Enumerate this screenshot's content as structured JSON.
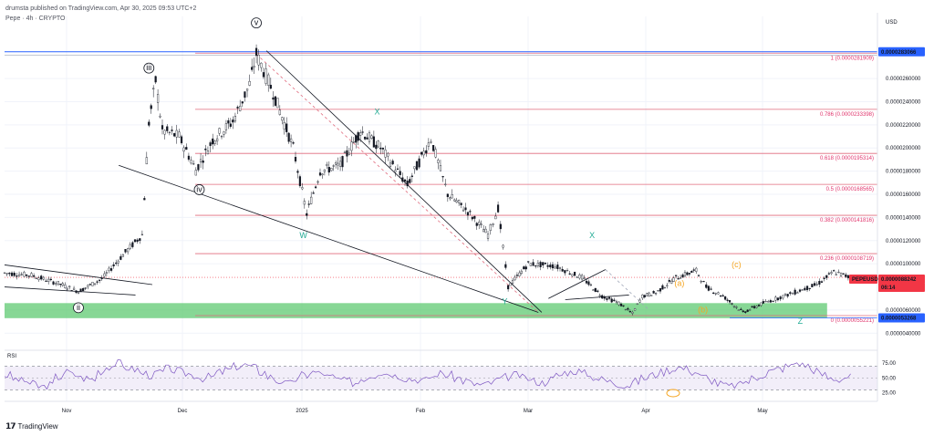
{
  "header": {
    "publisher": "drumsta published on TradingView.com, Apr 30, 2025 09:53 UTC+2",
    "symbol": "Pepe · 4h · CRYPTO"
  },
  "footer": {
    "brand": "TradingView"
  },
  "chart_data": {
    "type": "line",
    "title": "Pepe · 4h · CRYPTO",
    "currency": "USD",
    "x": [
      "Nov",
      "Dec",
      "2025",
      "Feb",
      "Mar",
      "Apr",
      "May"
    ],
    "y_ticks": [
      "0.0000260000",
      "0.0000240000",
      "0.0000220000",
      "0.0000200000",
      "0.0000180000",
      "0.0000160000",
      "0.0000140000",
      "0.0000120000",
      "0.0000100000",
      "0.0000060000",
      "0.0000040000"
    ],
    "ylim": [
      3e-06,
      2.9e-05
    ],
    "price_path": [
      {
        "t": 0,
        "p": 9.2e-06
      },
      {
        "t": 0.04,
        "p": 9e-06
      },
      {
        "t": 0.08,
        "p": 8.3e-06
      },
      {
        "t": 0.11,
        "p": 7.6e-06
      },
      {
        "t": 0.145,
        "p": 8.7e-06
      },
      {
        "t": 0.18,
        "p": 1.1e-05
      },
      {
        "t": 0.205,
        "p": 1.25e-05
      },
      {
        "t": 0.215,
        "p": 2.22e-05
      },
      {
        "t": 0.225,
        "p": 2.58e-05
      },
      {
        "t": 0.235,
        "p": 2.15e-05
      },
      {
        "t": 0.26,
        "p": 2.1e-05
      },
      {
        "t": 0.285,
        "p": 1.81e-05
      },
      {
        "t": 0.31,
        "p": 2.07e-05
      },
      {
        "t": 0.34,
        "p": 2.23e-05
      },
      {
        "t": 0.365,
        "p": 2.55e-05
      },
      {
        "t": 0.375,
        "p": 2.81e-05
      },
      {
        "t": 0.4,
        "p": 2.48e-05
      },
      {
        "t": 0.43,
        "p": 2e-05
      },
      {
        "t": 0.45,
        "p": 1.43e-05
      },
      {
        "t": 0.47,
        "p": 1.8e-05
      },
      {
        "t": 0.5,
        "p": 1.85e-05
      },
      {
        "t": 0.53,
        "p": 2.15e-05
      },
      {
        "t": 0.56,
        "p": 2e-05
      },
      {
        "t": 0.6,
        "p": 1.68e-05
      },
      {
        "t": 0.635,
        "p": 2.08e-05
      },
      {
        "t": 0.66,
        "p": 1.6e-05
      },
      {
        "t": 0.69,
        "p": 1.45e-05
      },
      {
        "t": 0.72,
        "p": 1.25e-05
      },
      {
        "t": 0.735,
        "p": 1.48e-05
      },
      {
        "t": 0.75,
        "p": 8e-06
      },
      {
        "t": 0.78,
        "p": 1e-05
      },
      {
        "t": 0.82,
        "p": 9.8e-06
      },
      {
        "t": 0.86,
        "p": 8.8e-06
      },
      {
        "t": 0.89,
        "p": 7.2e-06
      },
      {
        "t": 0.915,
        "p": 6.6e-06
      },
      {
        "t": 0.935,
        "p": 5.7e-06
      },
      {
        "t": 0.95,
        "p": 7.2e-06
      },
      {
        "t": 0.97,
        "p": 7.5e-06
      },
      {
        "t": 1.0,
        "p": 8.8e-06
      },
      {
        "t": 1.03,
        "p": 9.4e-06
      },
      {
        "t": 1.045,
        "p": 8e-06
      },
      {
        "t": 1.07,
        "p": 7.2e-06
      },
      {
        "t": 1.1,
        "p": 5.8e-06
      },
      {
        "t": 1.13,
        "p": 6.6e-06
      },
      {
        "t": 1.17,
        "p": 7.4e-06
      },
      {
        "t": 1.21,
        "p": 8.2e-06
      },
      {
        "t": 1.235,
        "p": 9.3e-06
      },
      {
        "t": 1.26,
        "p": 8.8e-06
      }
    ],
    "fib_levels": [
      {
        "label": "1 (0.0000281909)",
        "value": 2.81909e-05
      },
      {
        "label": "0.786 (0.0000233398)",
        "value": 2.33398e-05
      },
      {
        "label": "0.618 (0.0000195314)",
        "value": 1.95314e-05
      },
      {
        "label": "0.5 (0.0000168565)",
        "value": 1.68565e-05
      },
      {
        "label": "0.382 (0.0000141816)",
        "value": 1.41816e-05
      },
      {
        "label": "0.236 (0.0000108719)",
        "value": 1.08719e-05
      },
      {
        "label": "0 (0.0000055221)",
        "value": 5.5221e-06
      }
    ],
    "price_tags": [
      {
        "label": "0.0000283066",
        "value": 2.83066e-05,
        "color": "#2962ff"
      },
      {
        "label": "PEPEUSD",
        "value": 9.2e-06,
        "color": "#f23645"
      },
      {
        "label": "0.0000088242",
        "value": 8.8242e-06,
        "color": "#f23645"
      },
      {
        "label": "06:14",
        "value": 8.4e-06,
        "color": "#f23645"
      },
      {
        "label": "0.0000053268",
        "value": 5.3268e-06,
        "color": "#2962ff"
      }
    ],
    "wave_labels": [
      {
        "text": "ii",
        "t": 0.11,
        "p": 6.2e-06,
        "circled": true
      },
      {
        "text": "iii",
        "t": 0.215,
        "p": 2.69e-05,
        "circled": true
      },
      {
        "text": "iv",
        "t": 0.29,
        "p": 1.64e-05,
        "circled": true
      },
      {
        "text": "v",
        "t": 0.375,
        "p": 3.08e-05,
        "circled": true
      },
      {
        "text": "X",
        "t": 0.555,
        "p": 2.29e-05,
        "circled": false,
        "color": "#22ab94"
      },
      {
        "text": "W",
        "t": 0.445,
        "p": 1.22e-05,
        "circled": false,
        "color": "#22ab94"
      },
      {
        "text": "Y",
        "t": 0.745,
        "p": 6.5e-06,
        "circled": false,
        "color": "#22ab94"
      },
      {
        "text": "X",
        "t": 0.875,
        "p": 1.22e-05,
        "circled": false,
        "color": "#22ab94"
      },
      {
        "text": "(a)",
        "t": 1.005,
        "p": 8.1e-06,
        "circled": false,
        "color": "#f5a623"
      },
      {
        "text": "(b)",
        "t": 1.04,
        "p": 5.8e-06,
        "circled": false,
        "color": "#f5a623"
      },
      {
        "text": "(c)",
        "t": 1.09,
        "p": 9.7e-06,
        "circled": false,
        "color": "#f5a623"
      },
      {
        "text": "Z",
        "t": 1.185,
        "p": 4.8e-06,
        "circled": false,
        "color": "#22ab94"
      }
    ],
    "rsi": {
      "label": "RSI",
      "ticks": [
        "75.00",
        "50.00",
        "25.00"
      ],
      "upper": 70,
      "lower": 30,
      "values": [
        55,
        48,
        45,
        40,
        35,
        38,
        52,
        60,
        55,
        50,
        48,
        62,
        70,
        75,
        68,
        65,
        58,
        55,
        60,
        66,
        62,
        58,
        55,
        50,
        52,
        60,
        64,
        70,
        72,
        68,
        60,
        52,
        45,
        40,
        48,
        55,
        60,
        58,
        52,
        48,
        45,
        42,
        50,
        55,
        60,
        58,
        54,
        50,
        48,
        46,
        52,
        58,
        55,
        50,
        45,
        40,
        38,
        42,
        48,
        52,
        55,
        50,
        45,
        42,
        48,
        55,
        60,
        62,
        58,
        52,
        48,
        44,
        40,
        38,
        44,
        50,
        55,
        60,
        64,
        68,
        66,
        60,
        52,
        46,
        40,
        36,
        38,
        44,
        50,
        56,
        62,
        66,
        70,
        76,
        72,
        64,
        56,
        50,
        48,
        52
      ]
    }
  }
}
